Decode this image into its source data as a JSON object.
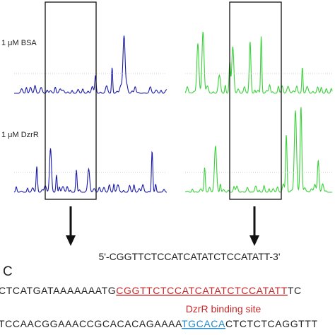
{
  "panel_b": {
    "labels": [
      "1 μM BSA",
      "1 μM DzrR"
    ],
    "probe_sequence": "5'-CGGTTCTCCATCATATCTCCATATT-3'"
  },
  "panel_c": {
    "label": "C",
    "line1": {
      "before": "CTCATGATAAAAAAATG",
      "site": "CGGTTCTCCATCATATCTCCATATT",
      "after": "TC"
    },
    "site_label": "DzrR binding site",
    "line2": {
      "before": "TCCAACGGAAACCGCACACAGAAAA",
      "site": "TGCACA",
      "after": "CTCTCTCAGGTTT"
    }
  }
}
